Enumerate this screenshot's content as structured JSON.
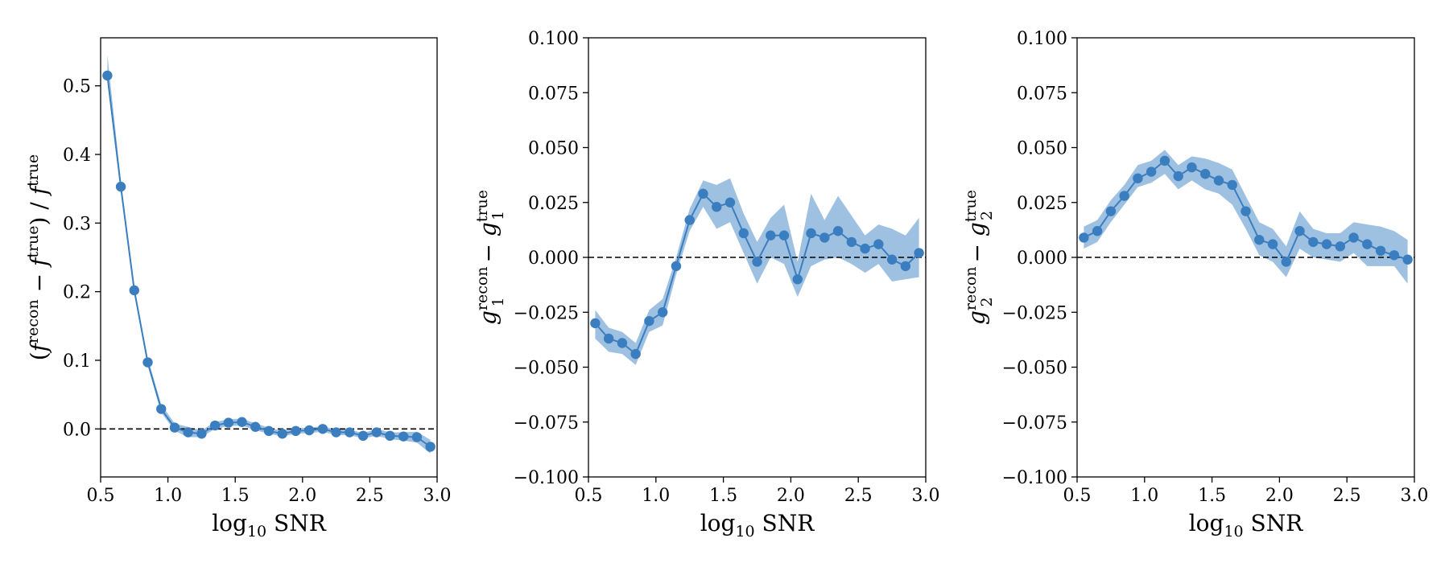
{
  "colors": {
    "series": "#3a7ebf",
    "band": "#6a9fd2",
    "reference": "#000000"
  },
  "chart_data": [
    {
      "type": "line",
      "xlabel": "log10 SNR",
      "ylabel": "(f^recon − f^true) / f^true",
      "xlim": [
        0.5,
        3.0
      ],
      "ylim": [
        -0.07,
        0.57
      ],
      "xticks": [
        "0.5",
        "1.0",
        "1.5",
        "2.0",
        "2.5",
        "3.0"
      ],
      "xtick_values": [
        0.5,
        1.0,
        1.5,
        2.0,
        2.5,
        3.0
      ],
      "yticks": [
        "0.0",
        "0.1",
        "0.2",
        "0.3",
        "0.4",
        "0.5"
      ],
      "ytick_values": [
        0.0,
        0.1,
        0.2,
        0.3,
        0.4,
        0.5
      ],
      "reference_line": 0.0,
      "x": [
        0.55,
        0.65,
        0.75,
        0.85,
        0.95,
        1.05,
        1.15,
        1.25,
        1.35,
        1.45,
        1.55,
        1.65,
        1.75,
        1.85,
        1.95,
        2.05,
        2.15,
        2.25,
        2.35,
        2.45,
        2.55,
        2.65,
        2.75,
        2.85,
        2.95
      ],
      "y": [
        0.515,
        0.353,
        0.202,
        0.097,
        0.029,
        0.002,
        -0.005,
        -0.007,
        0.005,
        0.009,
        0.01,
        0.003,
        -0.003,
        -0.007,
        -0.003,
        -0.002,
        0.0,
        -0.005,
        -0.005,
        -0.01,
        -0.005,
        -0.01,
        -0.011,
        -0.012,
        -0.026
      ],
      "y_lower": [
        0.505,
        0.345,
        0.196,
        0.092,
        0.024,
        -0.003,
        -0.012,
        -0.012,
        0.0,
        0.004,
        0.005,
        -0.002,
        -0.007,
        -0.011,
        -0.007,
        -0.006,
        -0.004,
        -0.009,
        -0.009,
        -0.014,
        -0.01,
        -0.015,
        -0.017,
        -0.02,
        -0.036
      ],
      "y_upper": [
        0.545,
        0.362,
        0.208,
        0.103,
        0.036,
        0.008,
        0.003,
        -0.002,
        0.01,
        0.014,
        0.015,
        0.008,
        0.002,
        -0.003,
        0.001,
        0.002,
        0.004,
        -0.001,
        -0.001,
        -0.006,
        0.0,
        -0.005,
        -0.005,
        -0.004,
        -0.016
      ]
    },
    {
      "type": "line",
      "xlabel": "log10 SNR",
      "ylabel": "g1^recon − g1^true",
      "xlim": [
        0.5,
        3.0
      ],
      "ylim": [
        -0.1,
        0.1
      ],
      "xticks": [
        "0.5",
        "1.0",
        "1.5",
        "2.0",
        "2.5",
        "3.0"
      ],
      "xtick_values": [
        0.5,
        1.0,
        1.5,
        2.0,
        2.5,
        3.0
      ],
      "yticks": [
        "−0.100",
        "−0.075",
        "−0.050",
        "−0.025",
        "0.000",
        "0.025",
        "0.050",
        "0.075",
        "0.100"
      ],
      "ytick_values": [
        -0.1,
        -0.075,
        -0.05,
        -0.025,
        0.0,
        0.025,
        0.05,
        0.075,
        0.1
      ],
      "reference_line": 0.0,
      "x": [
        0.55,
        0.65,
        0.75,
        0.85,
        0.95,
        1.05,
        1.15,
        1.25,
        1.35,
        1.45,
        1.55,
        1.65,
        1.75,
        1.85,
        1.95,
        2.05,
        2.15,
        2.25,
        2.35,
        2.45,
        2.55,
        2.65,
        2.75,
        2.85,
        2.95
      ],
      "y": [
        -0.03,
        -0.037,
        -0.039,
        -0.044,
        -0.029,
        -0.025,
        -0.004,
        0.017,
        0.029,
        0.023,
        0.025,
        0.011,
        -0.002,
        0.01,
        0.01,
        -0.01,
        0.011,
        0.009,
        0.012,
        0.007,
        0.004,
        0.006,
        -0.001,
        -0.004,
        0.002
      ],
      "y_lower": [
        -0.037,
        -0.043,
        -0.044,
        -0.049,
        -0.034,
        -0.031,
        -0.008,
        0.012,
        0.023,
        0.013,
        0.016,
        0.002,
        -0.012,
        0.0,
        -0.003,
        -0.018,
        -0.004,
        -0.001,
        0.0,
        -0.003,
        -0.007,
        -0.003,
        -0.011,
        -0.01,
        -0.009
      ],
      "y_upper": [
        -0.024,
        -0.032,
        -0.034,
        -0.039,
        -0.024,
        -0.019,
        0.0,
        0.022,
        0.035,
        0.033,
        0.036,
        0.02,
        0.007,
        0.018,
        0.024,
        -0.002,
        0.029,
        0.017,
        0.028,
        0.019,
        0.01,
        0.015,
        0.013,
        0.01,
        0.018
      ]
    },
    {
      "type": "line",
      "xlabel": "log10 SNR",
      "ylabel": "g2^recon − g2^true",
      "xlim": [
        0.5,
        3.0
      ],
      "ylim": [
        -0.1,
        0.1
      ],
      "xticks": [
        "0.5",
        "1.0",
        "1.5",
        "2.0",
        "2.5",
        "3.0"
      ],
      "xtick_values": [
        0.5,
        1.0,
        1.5,
        2.0,
        2.5,
        3.0
      ],
      "yticks": [
        "−0.100",
        "−0.075",
        "−0.050",
        "−0.025",
        "0.000",
        "0.025",
        "0.050",
        "0.075",
        "0.100"
      ],
      "ytick_values": [
        -0.1,
        -0.075,
        -0.05,
        -0.025,
        0.0,
        0.025,
        0.05,
        0.075,
        0.1
      ],
      "reference_line": 0.0,
      "x": [
        0.55,
        0.65,
        0.75,
        0.85,
        0.95,
        1.05,
        1.15,
        1.25,
        1.35,
        1.45,
        1.55,
        1.65,
        1.75,
        1.85,
        1.95,
        2.05,
        2.15,
        2.25,
        2.35,
        2.45,
        2.55,
        2.65,
        2.75,
        2.85,
        2.95
      ],
      "y": [
        0.009,
        0.012,
        0.021,
        0.028,
        0.036,
        0.039,
        0.044,
        0.037,
        0.041,
        0.038,
        0.035,
        0.033,
        0.021,
        0.008,
        0.006,
        -0.002,
        0.012,
        0.007,
        0.006,
        0.005,
        0.009,
        0.006,
        0.003,
        0.001,
        -0.001
      ],
      "y_lower": [
        0.004,
        0.007,
        0.016,
        0.024,
        0.032,
        0.034,
        0.038,
        0.031,
        0.035,
        0.031,
        0.029,
        0.024,
        0.013,
        0.001,
        -0.002,
        -0.009,
        0.004,
        0.0,
        -0.001,
        -0.002,
        0.002,
        -0.004,
        -0.004,
        -0.004,
        -0.012
      ],
      "y_upper": [
        0.014,
        0.017,
        0.026,
        0.033,
        0.042,
        0.044,
        0.049,
        0.042,
        0.046,
        0.045,
        0.043,
        0.04,
        0.028,
        0.016,
        0.013,
        0.005,
        0.021,
        0.013,
        0.011,
        0.011,
        0.016,
        0.015,
        0.014,
        0.012,
        0.008
      ]
    }
  ]
}
